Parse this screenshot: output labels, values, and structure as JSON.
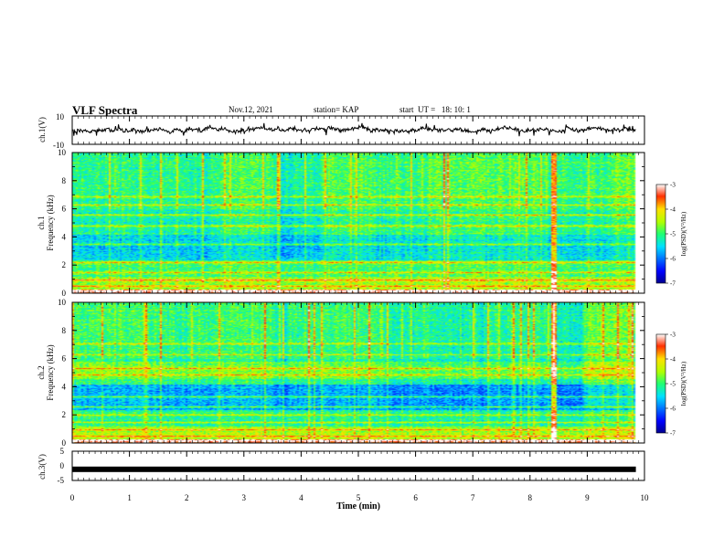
{
  "header": {
    "title": "VLF Spectra",
    "date": "Nov.12, 2021",
    "station": "station= KAP",
    "start": "start  UT =   18: 10: 1"
  },
  "chart_data": [
    {
      "type": "line",
      "name": "ch1-waveform",
      "ylabel": "ch.1(V)",
      "ylim": [
        -10,
        10
      ],
      "yticks": [
        "10",
        "-10"
      ],
      "xlim": [
        0,
        10
      ],
      "waveform": {
        "center": 0,
        "amplitude_range": [
          -6,
          5
        ],
        "noise": "broadband"
      }
    },
    {
      "type": "heatmap",
      "name": "ch1-spectrogram",
      "ylabel": "Frequency (kHz)",
      "channel_label": "ch.1",
      "ylim": [
        0,
        10
      ],
      "yticks": [
        "0",
        "2",
        "4",
        "6",
        "8",
        "10"
      ],
      "xlim": [
        0,
        10
      ],
      "data_end_min": 9.85,
      "colorbar": {
        "label": "log(PSD)(V²/Hz)",
        "range": [
          -7,
          -3
        ],
        "ticks": [
          "-3",
          "-4",
          "-5",
          "-6",
          "-7"
        ]
      },
      "segment_boundaries_min": [
        1.55,
        2.2,
        2.4,
        2.75,
        3.5,
        3.85,
        4.4,
        5.0,
        5.3,
        6.2,
        7.25,
        8.3,
        8.45,
        8.9,
        9.0,
        9.4
      ],
      "strong_bands_khz": [
        0.2,
        0.5,
        1.0,
        1.5,
        2.2,
        3.5,
        4.8,
        5.6,
        6.3,
        6.9
      ]
    },
    {
      "type": "heatmap",
      "name": "ch2-spectrogram",
      "ylabel": "Frequency (kHz)",
      "channel_label": "ch.2",
      "ylim": [
        0,
        10
      ],
      "yticks": [
        "0",
        "2",
        "4",
        "6",
        "8",
        "10"
      ],
      "xlim": [
        0,
        10
      ],
      "data_end_min": 9.85,
      "colorbar": {
        "label": "log(PSD)(V²/Hz)",
        "range": [
          -7,
          -3
        ],
        "ticks": [
          "-3",
          "-4",
          "-5",
          "-6",
          "-7"
        ]
      },
      "segment_boundaries_min": [
        1.55,
        2.2,
        2.4,
        2.75,
        3.5,
        3.85,
        4.4,
        5.0,
        5.3,
        6.2,
        7.25,
        8.3,
        8.45,
        8.9,
        9.0,
        9.4
      ],
      "strong_bands_khz": [
        0.2,
        0.5,
        1.0,
        1.5,
        2.0,
        2.6,
        3.3,
        4.9,
        5.3,
        6.3,
        7.1
      ]
    },
    {
      "type": "line",
      "name": "ch3-waveform",
      "ylabel": "ch.3(V)",
      "ylim": [
        -5,
        5
      ],
      "yticks": [
        "5",
        "0",
        "-5"
      ],
      "xlim": [
        0,
        10
      ],
      "waveform": {
        "center": -1.2,
        "amplitude_range": [
          -0.5,
          0.5
        ],
        "noise": "square"
      }
    }
  ],
  "xaxis": {
    "label": "Time (min)",
    "ticks": [
      "0",
      "1",
      "2",
      "3",
      "4",
      "5",
      "6",
      "7",
      "8",
      "9",
      "10"
    ]
  }
}
